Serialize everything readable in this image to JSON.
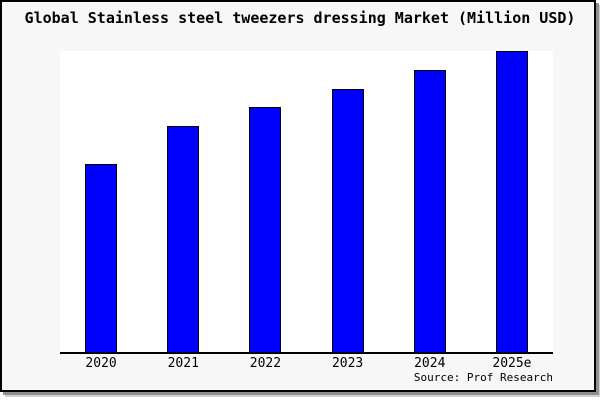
{
  "title": "Global Stainless steel tweezers dressing Market (Million USD)",
  "source_note": "Source: Prof Research",
  "window": {
    "background": "#f7f7f7",
    "plot_background": "#ffffff",
    "border_color": "#000000",
    "shadow_color": "#8f8f8f"
  },
  "chart_data": {
    "type": "bar",
    "title": "Global Stainless steel tweezers dressing Market (Million USD)",
    "categories": [
      "2020",
      "2021",
      "2022",
      "2023",
      "2024",
      "2025e"
    ],
    "values": [
      100,
      120,
      130,
      140,
      150,
      160
    ],
    "values_note": "Relative units estimated from bar heights; the y-axis shows no tick labels or gridlines",
    "xlabel": "",
    "ylabel": "",
    "ylim": [
      0,
      160
    ],
    "grid": false,
    "legend": false,
    "bar_color": "#0000ff",
    "bar_edge_color": "#000000",
    "source": "Source: Prof Research"
  }
}
